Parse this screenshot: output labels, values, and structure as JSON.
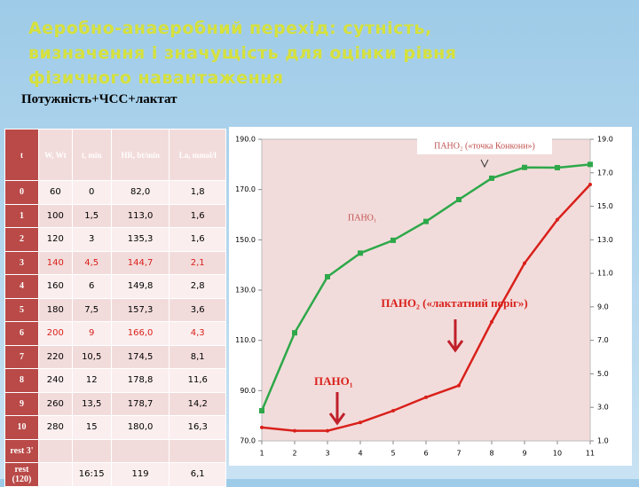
{
  "header": {
    "title_lines": [
      "Аеробно-анаеробний перехід: сутність,",
      "визначення і значущість для оцінки рівня",
      "фізичного навантаження"
    ],
    "subtitle": "Потужність+ЧСС+лактат"
  },
  "table": {
    "header": [
      "t",
      "W, Wt",
      "t, min",
      "HR, bt/min",
      "La, mmol/l"
    ],
    "rows": [
      [
        "0",
        "60",
        "0",
        "82,0",
        "1,8"
      ],
      [
        "1",
        "100",
        "1,5",
        "113,0",
        "1,6"
      ],
      [
        "2",
        "120",
        "3",
        "135,3",
        "1,6"
      ],
      [
        "3",
        "140",
        "4,5",
        "144,7",
        "2,1"
      ],
      [
        "4",
        "160",
        "6",
        "149,8",
        "2,8"
      ],
      [
        "5",
        "180",
        "7,5",
        "157,3",
        "3,6"
      ],
      [
        "6",
        "200",
        "9",
        "166,0",
        "4,3"
      ],
      [
        "7",
        "220",
        "10,5",
        "174,5",
        "8,1"
      ],
      [
        "8",
        "240",
        "12",
        "178,8",
        "11,6"
      ],
      [
        "9",
        "260",
        "13,5",
        "178,7",
        "14,2"
      ],
      [
        "10",
        "280",
        "15",
        "180,0",
        "16,3"
      ],
      [
        "rest 3'"
      ],
      [
        "rest (120)",
        "",
        "16:15",
        "119",
        "6,1"
      ]
    ]
  },
  "chart_data": {
    "type": "line",
    "x": [
      1,
      2,
      3,
      4,
      5,
      6,
      7,
      8,
      9,
      10,
      11
    ],
    "xlim": [
      1,
      11
    ],
    "xticks": [
      1,
      2,
      3,
      4,
      5,
      6,
      7,
      8,
      9,
      10,
      11
    ],
    "ylim": [
      70,
      190
    ],
    "yticks": [
      {
        "value": 70,
        "label": "70.0"
      },
      {
        "value": 90,
        "label": "90.0"
      },
      {
        "value": 110,
        "label": "110.0"
      },
      {
        "value": 130,
        "label": "130.0"
      },
      {
        "value": 150,
        "label": "150.0"
      },
      {
        "value": 170,
        "label": "170.0"
      },
      {
        "value": 190,
        "label": "190.0"
      }
    ],
    "y2lim": [
      1,
      19
    ],
    "y2ticks": [
      {
        "value": 1,
        "label": "1.0"
      },
      {
        "value": 3,
        "label": "3.0"
      },
      {
        "value": 5,
        "label": "5.0"
      },
      {
        "value": 7,
        "label": "7.0"
      },
      {
        "value": 9,
        "label": "9.0"
      },
      {
        "value": 11,
        "label": "11.0"
      },
      {
        "value": 13,
        "label": "13.0"
      },
      {
        "value": 15,
        "label": "15.0"
      },
      {
        "value": 17,
        "label": "17.0"
      },
      {
        "value": 19,
        "label": "19.0"
      }
    ],
    "series": [
      {
        "color": "#2ea84a",
        "values": [
          82,
          113,
          135.3,
          144.7,
          149.8,
          157.3,
          166,
          174.5,
          178.8,
          178.7,
          180
        ]
      },
      {
        "color": "#d9201b",
        "axis": "y2",
        "values": [
          1.8,
          1.6,
          1.6,
          2.1,
          2.8,
          3.6,
          4.3,
          8.1,
          11.6,
          14.2,
          16.3
        ]
      }
    ],
    "annotations": [
      "ПАНО₂ («точка Конкони»)",
      "ПАНО₁",
      "ПАНО₂ («лактатний поріг»)",
      "ПАНО₁"
    ]
  }
}
